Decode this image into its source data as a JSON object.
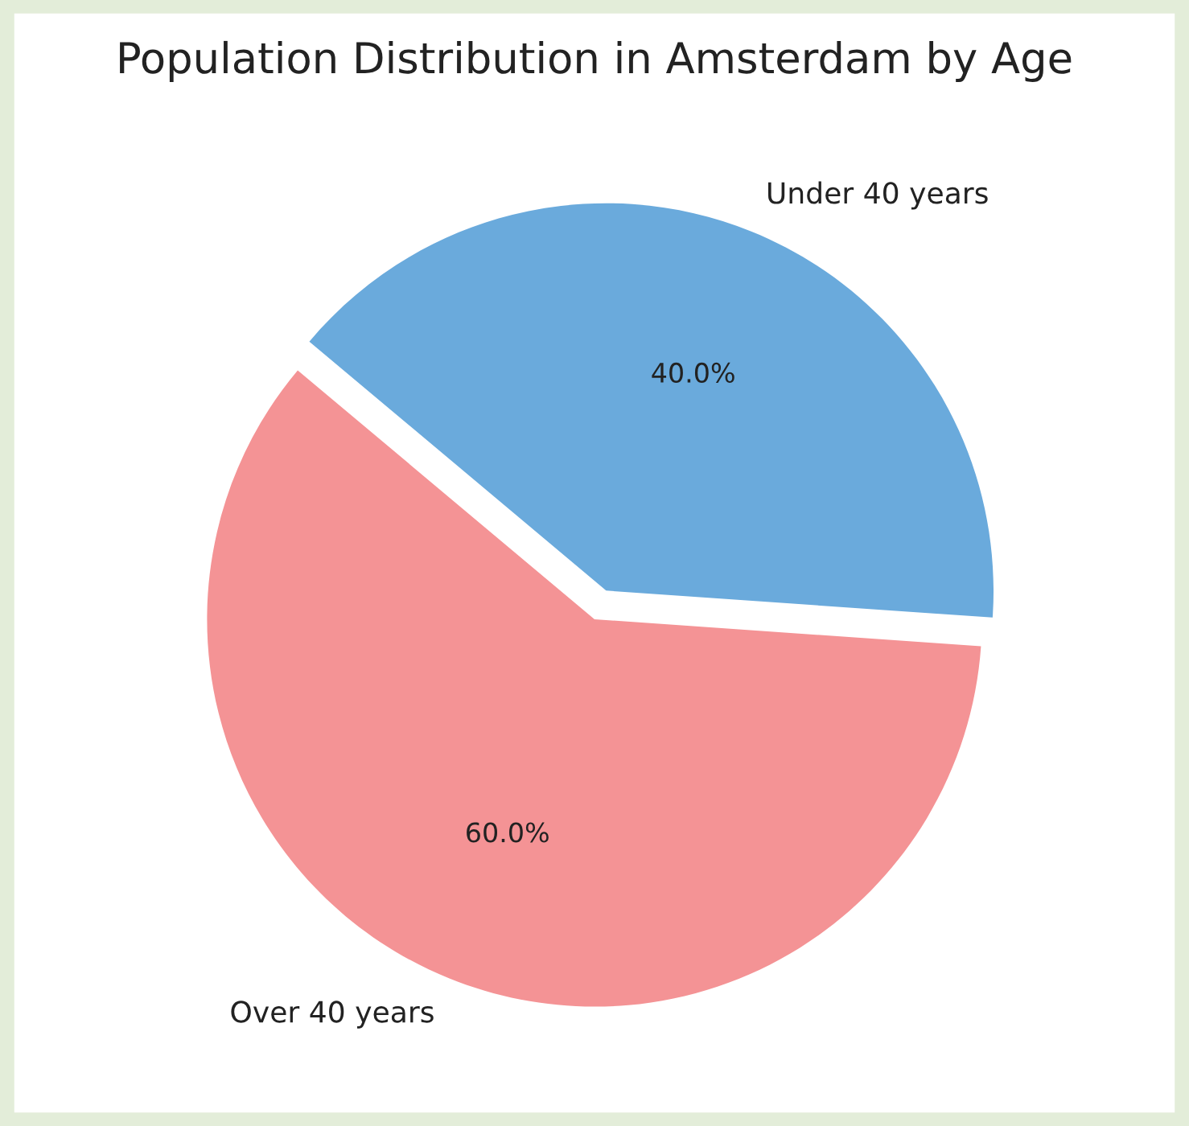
{
  "chart_data": {
    "type": "pie",
    "title": "Population Distribution in Amsterdam by Age",
    "categories": [
      "Under 40 years",
      "Over 40 years"
    ],
    "values": [
      40,
      60
    ],
    "colors": [
      "#6aaadc",
      "#f49395"
    ],
    "value_labels": [
      "40.0%",
      "60.0%"
    ]
  }
}
